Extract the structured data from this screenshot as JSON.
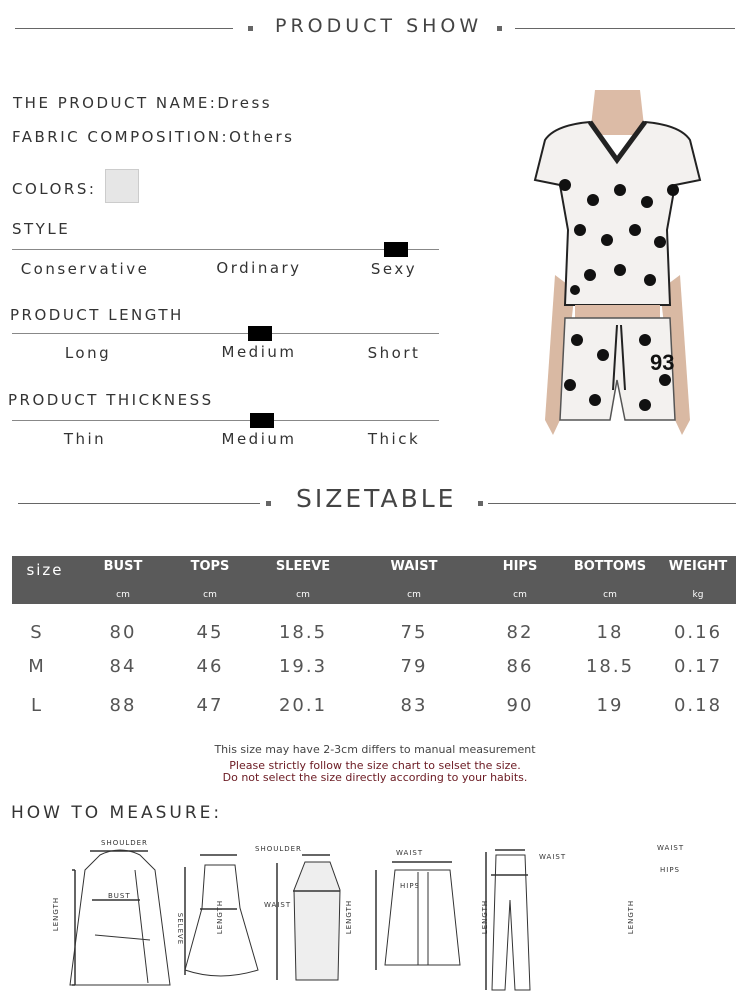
{
  "product_show": {
    "title": "PRODUCT SHOW"
  },
  "info": {
    "name_label": "THE PRODUCT NAME:",
    "name_value": "Dress",
    "fabric_label": "FABRIC COMPOSITION:",
    "fabric_value": "Others",
    "colors_label": "COLORS:",
    "color_swatch": "#e6e6e6"
  },
  "scales": [
    {
      "title": "STYLE",
      "options": [
        "Conservative",
        "Ordinary",
        "Sexy"
      ],
      "selected": "Sexy"
    },
    {
      "title": "PRODUCT LENGTH",
      "options": [
        "Long",
        "Medium",
        "Short"
      ],
      "selected": "Medium"
    },
    {
      "title": "PRODUCT THICKNESS",
      "options": [
        "Thin",
        "Medium",
        "Thick"
      ],
      "selected": "Medium"
    }
  ],
  "product_image": {
    "jersey_number": "93"
  },
  "sizetable": {
    "title": "SIZETABLE",
    "headers": [
      "size",
      "BUST",
      "TOPS",
      "SLEEVE",
      "WAIST",
      "HIPS",
      "BOTTOMS",
      "WEIGHT"
    ],
    "units": [
      "",
      "cm",
      "cm",
      "cm",
      "cm",
      "cm",
      "cm",
      "kg"
    ],
    "rows": [
      [
        "S",
        "80",
        "45",
        "18.5",
        "75",
        "82",
        "18",
        "0.16"
      ],
      [
        "M",
        "84",
        "46",
        "19.3",
        "79",
        "86",
        "18.5",
        "0.17"
      ],
      [
        "L",
        "88",
        "47",
        "20.1",
        "83",
        "90",
        "19",
        "0.18"
      ]
    ],
    "note": "This size may have 2-3cm differs to manual measurement",
    "warning_1": "Please strictly follow the size chart to selset the size.",
    "warning_2": "Do not select the size directly according to your habits.",
    "warning_color": "#6b1a22"
  },
  "measure": {
    "title": "HOW TO MEASURE:",
    "jacket": {
      "shoulder": "SHOULDER",
      "bust": "BUST",
      "length": "LENGTH",
      "sleeve": "SELEVE"
    },
    "dress": {
      "shoulder": "SHOULDER",
      "waist": "WAIST",
      "length": "LENGTH"
    },
    "skirt": {
      "waist": "WAIST",
      "hips": "HIPS",
      "length": "LENGTH"
    },
    "shorts": {
      "waist": "WAIST",
      "length": "LENGTH"
    },
    "pants": {
      "waist": "WAIST",
      "hips": "HIPS",
      "length": "LENGTH"
    }
  }
}
